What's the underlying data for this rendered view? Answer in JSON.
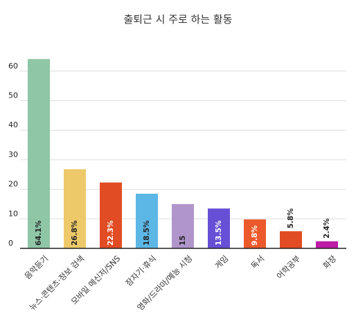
{
  "chart_data": {
    "type": "bar",
    "title": "출퇴근 시 주로 하는 활동",
    "categories": [
      "음악듣기",
      "뉴스·콘텐츠·정보 검색",
      "모바일 메신저/SNS",
      "잠자기·휴식",
      "영화/드라마/예능 시청",
      "게임",
      "독서",
      "어학공부",
      "화장"
    ],
    "values": [
      64.1,
      26.8,
      22.3,
      18.5,
      15,
      13.5,
      9.8,
      5.8,
      2.4
    ],
    "value_labels": [
      "64.1%",
      "26.8%",
      "22.3%",
      "18.5%",
      "15",
      "13.5%",
      "9.8%",
      "5.8%",
      "2.4%"
    ],
    "colors": [
      "#8ec6a6",
      "#edc96a",
      "#e24c24",
      "#5db7e6",
      "#b095cb",
      "#6850d6",
      "#ec5a2c",
      "#e24c24",
      "#bd1ca6"
    ],
    "label_colors": [
      "#222222",
      "#222222",
      "#ffffff",
      "#222222",
      "#222222",
      "#ffffff",
      "#ffffff",
      "#222222",
      "#222222"
    ],
    "label_inside": [
      true,
      true,
      true,
      true,
      true,
      true,
      true,
      false,
      false
    ],
    "yticks": [
      0,
      10,
      20,
      30,
      40,
      50,
      60
    ],
    "ylim": [
      0,
      65
    ],
    "grid": true,
    "xlabel": "",
    "ylabel": ""
  }
}
